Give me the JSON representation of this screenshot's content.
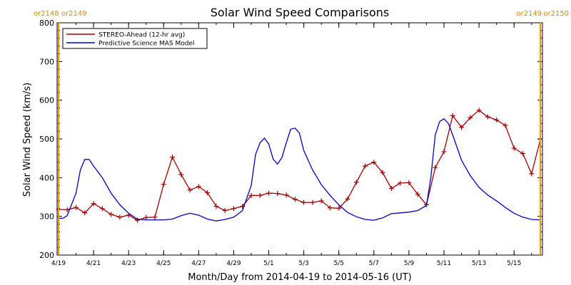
{
  "chart_data": {
    "type": "line",
    "title": "Solar Wind Speed Comparisons",
    "xlabel": "Month/Day from 2014-04-19 to 2014-05-16 (UT)",
    "ylabel": "Solar Wind Speed (km/s)",
    "xlim": [
      "2014-04-19",
      "2014-05-16"
    ],
    "ylim": [
      200,
      800
    ],
    "y_ticks": [
      200,
      300,
      400,
      500,
      600,
      700,
      800
    ],
    "x_ticks": [
      {
        "date": "2014-04-19",
        "label": "4/19"
      },
      {
        "date": "2014-04-21",
        "label": "4/21"
      },
      {
        "date": "2014-04-23",
        "label": "4/23"
      },
      {
        "date": "2014-04-25",
        "label": "4/25"
      },
      {
        "date": "2014-04-27",
        "label": "4/27"
      },
      {
        "date": "2014-04-29",
        "label": "4/29"
      },
      {
        "date": "2014-05-01",
        "label": "5/1"
      },
      {
        "date": "2014-05-03",
        "label": "5/3"
      },
      {
        "date": "2014-05-05",
        "label": "5/5"
      },
      {
        "date": "2014-05-07",
        "label": "5/7"
      },
      {
        "date": "2014-05-09",
        "label": "5/9"
      },
      {
        "date": "2014-05-11",
        "label": "5/11"
      },
      {
        "date": "2014-05-13",
        "label": "5/13"
      },
      {
        "date": "2014-05-15",
        "label": "5/15"
      }
    ],
    "legend": {
      "position": "top-left"
    },
    "carrington_markers": [
      {
        "date": "2014-04-19 00:00",
        "left_label": "or2148",
        "right_label": "or2149",
        "color": "#ff8c00"
      },
      {
        "date": "2014-05-16 12:00",
        "left_label": "or2149",
        "right_label": "or2150",
        "color": "#ff8c00"
      }
    ],
    "series": [
      {
        "name": "STEREO-Ahead (12-hr avg)",
        "color": "#a50000",
        "marker": "plus",
        "points": [
          [
            "2014-04-19 00:00",
            318
          ],
          [
            "2014-04-19 12:00",
            317
          ],
          [
            "2014-04-20 00:00",
            323
          ],
          [
            "2014-04-20 12:00",
            309
          ],
          [
            "2014-04-21 00:00",
            333
          ],
          [
            "2014-04-21 12:00",
            320
          ],
          [
            "2014-04-22 00:00",
            305
          ],
          [
            "2014-04-22 12:00",
            298
          ],
          [
            "2014-04-23 00:00",
            303
          ],
          [
            "2014-04-23 12:00",
            290
          ],
          [
            "2014-04-24 00:00",
            297
          ],
          [
            "2014-04-24 12:00",
            298
          ],
          [
            "2014-04-25 00:00",
            383
          ],
          [
            "2014-04-25 12:00",
            453
          ],
          [
            "2014-04-26 00:00",
            408
          ],
          [
            "2014-04-26 12:00",
            368
          ],
          [
            "2014-04-27 00:00",
            377
          ],
          [
            "2014-04-27 12:00",
            361
          ],
          [
            "2014-04-28 00:00",
            326
          ],
          [
            "2014-04-28 12:00",
            315
          ],
          [
            "2014-04-29 00:00",
            320
          ],
          [
            "2014-04-29 12:00",
            326
          ],
          [
            "2014-04-30 00:00",
            354
          ],
          [
            "2014-04-30 12:00",
            354
          ],
          [
            "2014-05-01 00:00",
            360
          ],
          [
            "2014-05-01 12:00",
            359
          ],
          [
            "2014-05-02 00:00",
            355
          ],
          [
            "2014-05-02 12:00",
            344
          ],
          [
            "2014-05-03 00:00",
            336
          ],
          [
            "2014-05-03 12:00",
            336
          ],
          [
            "2014-05-04 00:00",
            340
          ],
          [
            "2014-05-04 12:00",
            322
          ],
          [
            "2014-05-05 00:00",
            321
          ],
          [
            "2014-05-05 12:00",
            345
          ],
          [
            "2014-05-06 00:00",
            388
          ],
          [
            "2014-05-06 12:00",
            430
          ],
          [
            "2014-05-07 00:00",
            440
          ],
          [
            "2014-05-07 12:00",
            413
          ],
          [
            "2014-05-08 00:00",
            372
          ],
          [
            "2014-05-08 12:00",
            386
          ],
          [
            "2014-05-09 00:00",
            387
          ],
          [
            "2014-05-09 12:00",
            357
          ],
          [
            "2014-05-10 00:00",
            330
          ],
          [
            "2014-05-10 12:00",
            426
          ],
          [
            "2014-05-11 00:00",
            467
          ],
          [
            "2014-05-11 12:00",
            560
          ],
          [
            "2014-05-12 00:00",
            530
          ],
          [
            "2014-05-12 12:00",
            555
          ],
          [
            "2014-05-13 00:00",
            574
          ],
          [
            "2014-05-13 12:00",
            557
          ],
          [
            "2014-05-14 00:00",
            549
          ],
          [
            "2014-05-14 12:00",
            535
          ],
          [
            "2014-05-15 00:00",
            476
          ],
          [
            "2014-05-15 12:00",
            462
          ],
          [
            "2014-05-16 00:00",
            410
          ],
          [
            "2014-05-16 12:00",
            499
          ]
        ]
      },
      {
        "name": "Predictive Science MAS Model",
        "color": "#0000c8",
        "marker": "none",
        "points": [
          [
            "2014-04-19 00:00",
            295
          ],
          [
            "2014-04-19 06:00",
            295
          ],
          [
            "2014-04-19 12:00",
            302
          ],
          [
            "2014-04-20 00:00",
            360
          ],
          [
            "2014-04-20 06:00",
            420
          ],
          [
            "2014-04-20 12:00",
            447
          ],
          [
            "2014-04-20 18:00",
            447
          ],
          [
            "2014-04-21 00:00",
            430
          ],
          [
            "2014-04-21 12:00",
            400
          ],
          [
            "2014-04-22 00:00",
            360
          ],
          [
            "2014-04-22 12:00",
            330
          ],
          [
            "2014-04-23 00:00",
            308
          ],
          [
            "2014-04-23 12:00",
            293
          ],
          [
            "2014-04-24 00:00",
            291
          ],
          [
            "2014-04-25 00:00",
            291
          ],
          [
            "2014-04-25 12:00",
            293
          ],
          [
            "2014-04-26 00:00",
            302
          ],
          [
            "2014-04-26 12:00",
            308
          ],
          [
            "2014-04-27 00:00",
            303
          ],
          [
            "2014-04-27 12:00",
            293
          ],
          [
            "2014-04-28 00:00",
            288
          ],
          [
            "2014-04-28 12:00",
            292
          ],
          [
            "2014-04-29 00:00",
            298
          ],
          [
            "2014-04-29 12:00",
            315
          ],
          [
            "2014-04-30 00:00",
            380
          ],
          [
            "2014-04-30 06:00",
            460
          ],
          [
            "2014-04-30 12:00",
            490
          ],
          [
            "2014-04-30 18:00",
            502
          ],
          [
            "2014-05-01 00:00",
            487
          ],
          [
            "2014-05-01 06:00",
            448
          ],
          [
            "2014-05-01 12:00",
            435
          ],
          [
            "2014-05-01 18:00",
            452
          ],
          [
            "2014-05-02 00:00",
            490
          ],
          [
            "2014-05-02 06:00",
            525
          ],
          [
            "2014-05-02 12:00",
            528
          ],
          [
            "2014-05-02 18:00",
            515
          ],
          [
            "2014-05-03 00:00",
            470
          ],
          [
            "2014-05-03 12:00",
            420
          ],
          [
            "2014-05-04 00:00",
            382
          ],
          [
            "2014-05-04 12:00",
            354
          ],
          [
            "2014-05-05 00:00",
            330
          ],
          [
            "2014-05-05 12:00",
            310
          ],
          [
            "2014-05-06 00:00",
            299
          ],
          [
            "2014-05-06 12:00",
            292
          ],
          [
            "2014-05-07 00:00",
            290
          ],
          [
            "2014-05-07 12:00",
            296
          ],
          [
            "2014-05-08 00:00",
            307
          ],
          [
            "2014-05-08 12:00",
            309
          ],
          [
            "2014-05-09 00:00",
            311
          ],
          [
            "2014-05-09 12:00",
            315
          ],
          [
            "2014-05-10 00:00",
            328
          ],
          [
            "2014-05-10 06:00",
            400
          ],
          [
            "2014-05-10 12:00",
            510
          ],
          [
            "2014-05-10 18:00",
            545
          ],
          [
            "2014-05-11 00:00",
            552
          ],
          [
            "2014-05-11 06:00",
            540
          ],
          [
            "2014-05-11 12:00",
            510
          ],
          [
            "2014-05-12 00:00",
            445
          ],
          [
            "2014-05-12 12:00",
            405
          ],
          [
            "2014-05-13 00:00",
            375
          ],
          [
            "2014-05-13 12:00",
            355
          ],
          [
            "2014-05-14 00:00",
            340
          ],
          [
            "2014-05-14 12:00",
            323
          ],
          [
            "2014-05-15 00:00",
            308
          ],
          [
            "2014-05-15 12:00",
            298
          ],
          [
            "2014-05-16 00:00",
            292
          ],
          [
            "2014-05-16 12:00",
            291
          ]
        ]
      }
    ]
  }
}
